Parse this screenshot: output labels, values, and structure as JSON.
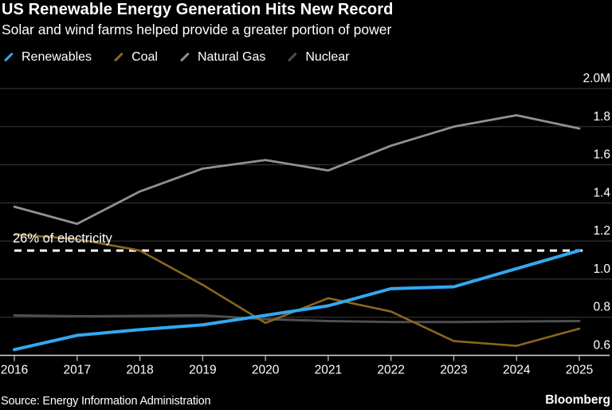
{
  "header": {
    "title": "US Renewable Energy Generation Hits New Record",
    "subtitle": "Solar and wind farms helped provide a greater portion of power"
  },
  "chart_data": {
    "type": "line",
    "x": [
      2016,
      2017,
      2018,
      2019,
      2020,
      2021,
      2022,
      2023,
      2024,
      2025
    ],
    "series": [
      {
        "name": "Renewables",
        "color": "#33A8F0",
        "values": [
          0.63,
          0.705,
          0.735,
          0.76,
          0.81,
          0.86,
          0.95,
          0.96,
          1.055,
          1.15
        ]
      },
      {
        "name": "Coal",
        "color": "#8A671C",
        "values": [
          1.235,
          1.21,
          1.15,
          0.97,
          0.77,
          0.9,
          0.83,
          0.675,
          0.65,
          0.74
        ]
      },
      {
        "name": "Natural Gas",
        "color": "#919191",
        "values": [
          1.38,
          1.29,
          1.46,
          1.58,
          1.625,
          1.57,
          1.7,
          1.8,
          1.86,
          1.79
        ]
      },
      {
        "name": "Nuclear",
        "color": "#4D4E52",
        "values": [
          0.81,
          0.805,
          0.807,
          0.81,
          0.79,
          0.78,
          0.775,
          0.775,
          0.778,
          0.78
        ]
      }
    ],
    "title": "US Renewable Energy Generation Hits New Record",
    "xlabel": "",
    "ylabel": "",
    "ylim": [
      0.6,
      2.0
    ],
    "yticks": [
      {
        "value": 2.0,
        "label": "2.0M"
      },
      {
        "value": 1.8,
        "label": "1.8"
      },
      {
        "value": 1.6,
        "label": "1.6"
      },
      {
        "value": 1.4,
        "label": "1.4"
      },
      {
        "value": 1.2,
        "label": "1.2"
      },
      {
        "value": 1.0,
        "label": "1.0"
      },
      {
        "value": 0.8,
        "label": "0.8"
      },
      {
        "value": 0.6,
        "label": "0.6"
      }
    ],
    "grid": "horizontal",
    "legend_position": "top",
    "annotation": {
      "text": "26% of electricity",
      "value": 1.15,
      "style": "white-dashed-line"
    }
  },
  "colors": {
    "background": "#000000",
    "text": "#ffffff",
    "gridline": "#3c3c3c",
    "axis": "#d8d8d8",
    "annotation_line": "#ffffff"
  },
  "footer": {
    "source": "Source: Energy Information Administration",
    "brand": "Bloomberg"
  }
}
